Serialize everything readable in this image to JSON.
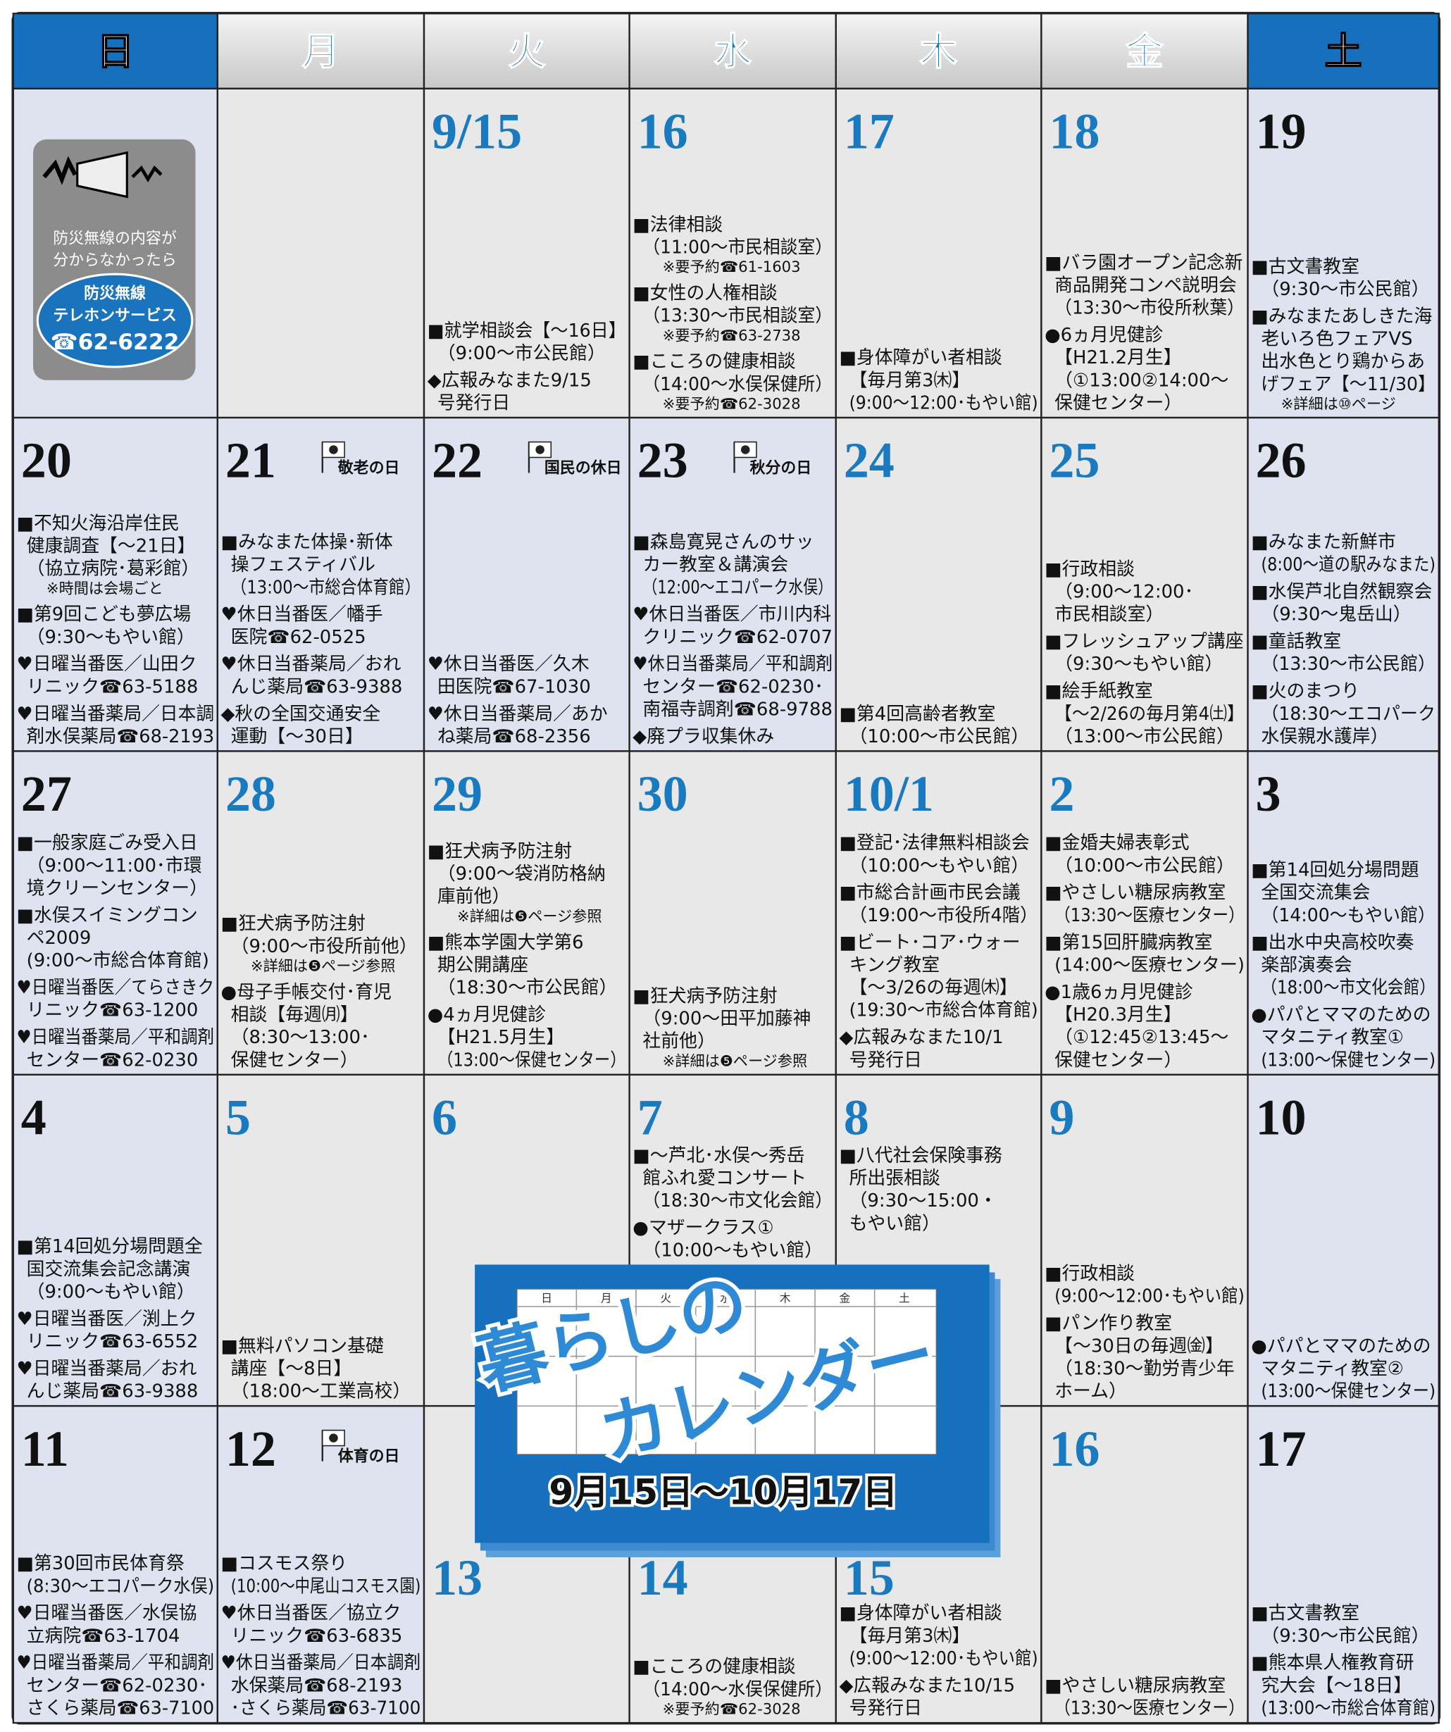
{
  "header": {
    "days": [
      "日",
      "月",
      "火",
      "水",
      "木",
      "金",
      "土"
    ]
  },
  "notice": {
    "lines": [
      "防災無線の内容が",
      "分からなかったら"
    ],
    "badge": [
      "防災無線",
      "テレホンサービス",
      "☎62-6222"
    ]
  },
  "banner": {
    "mini_days": [
      "日",
      "月",
      "火",
      "水",
      "木",
      "金",
      "土"
    ],
    "title1": "暮らしの",
    "title2": "カレンダー",
    "period": "9月15日〜10月17日"
  },
  "weeks": [
    {
      "days": [
        {
          "events": []
        },
        {
          "events": []
        },
        {
          "date": "9/15",
          "events": [
            [
              "■就学相談会【〜16日】",
              "（9:00〜市公民館）"
            ],
            [
              "◆広報みなまた9/15",
              "号発行日"
            ]
          ]
        },
        {
          "date": "16",
          "events": [
            [
              "■法律相談",
              "（11:00〜市民相談室）",
              "※要予約☎61-1603"
            ],
            [
              "■女性の人権相談",
              "（13:30〜市民相談室）",
              "※要予約☎63-2738"
            ],
            [
              "■こころの健康相談",
              "（14:00〜水俣保健所）",
              "※要予約☎62-3028"
            ]
          ]
        },
        {
          "date": "17",
          "events": [
            [
              "■身体障がい者相談",
              "【毎月第3㈭】",
              "(9:00〜12:00･もやい館)"
            ]
          ]
        },
        {
          "date": "18",
          "events": [
            [
              "■バラ園オープン記念新",
              "商品開発コンペ説明会",
              "（13:30〜市役所秋葉）"
            ],
            [
              "●6ヵ月児健診",
              "【H21.2月生】",
              "（①13:00②14:00〜",
              "保健センター）"
            ]
          ]
        },
        {
          "date": "19",
          "events": [
            [
              "■古文書教室",
              "（9:30〜市公民館）"
            ],
            [
              "■みなまたあしきた海",
              "老いろ色フェアVS",
              "出水色とり鶏からあ",
              "げフェア【〜11/30】",
              "※詳細は⑩ページ"
            ]
          ]
        }
      ]
    },
    {
      "days": [
        {
          "date": "20",
          "events": [
            [
              "■不知火海沿岸住民",
              "健康調査【〜21日】",
              "（協立病院･葛彩館）",
              "※時間は会場ごと"
            ],
            [
              "■第9回こども夢広場",
              "（9:30〜もやい館）"
            ],
            [
              "♥日曜当番医／山田ク",
              "リニック☎63-5188"
            ],
            [
              "♥日曜当番薬局／日本調",
              "剤水俣薬局☎68-2193"
            ]
          ]
        },
        {
          "date": "21",
          "holiday": "敬老の日",
          "events": [
            [
              "■みなまた体操･新体",
              "操フェスティバル",
              "（13:00〜市総合体育館）"
            ],
            [
              "♥休日当番医／幡手",
              "医院☎62-0525"
            ],
            [
              "♥休日当番薬局／おれ",
              "んじ薬局☎63-9388"
            ],
            [
              "◆秋の全国交通安全",
              "運動【〜30日】"
            ]
          ]
        },
        {
          "date": "22",
          "holiday": "国民の休日",
          "events": [
            [
              "♥休日当番医／久木",
              "田医院☎67-1030"
            ],
            [
              "♥休日当番薬局／あか",
              "ね薬局☎68-2356"
            ]
          ]
        },
        {
          "date": "23",
          "holiday": "秋分の日",
          "events": [
            [
              "■森島寛晃さんのサッ",
              "カー教室＆講演会",
              "（12:00〜エコパーク水俣）"
            ],
            [
              "♥休日当番医／市川内科",
              "クリニック☎62-0707"
            ],
            [
              "♥休日当番薬局／平和調剤",
              "センター☎62-0230･",
              "南福寺調剤☎68-9788"
            ],
            [
              "◆廃プラ収集休み"
            ]
          ]
        },
        {
          "date": "24",
          "events": [
            [
              "■第4回高齢者教室",
              "（10:00〜市公民館）"
            ]
          ]
        },
        {
          "date": "25",
          "events": [
            [
              "■行政相談",
              "（9:00〜12:00･",
              "市民相談室）"
            ],
            [
              "■フレッシュアップ講座",
              "（9:30〜もやい館）"
            ],
            [
              "■絵手紙教室",
              "【〜2/26の毎月第4㈯】",
              "（13:00〜市公民館）"
            ]
          ]
        },
        {
          "date": "26",
          "events": [
            [
              "■みなまた新鮮市",
              "(8:00〜道の駅みなまた)"
            ],
            [
              "■水俣芦北自然観察会",
              "（9:30〜鬼岳山）"
            ],
            [
              "■童話教室",
              "（13:30〜市公民館）"
            ],
            [
              "■火のまつり",
              "（18:30〜エコパーク",
              "水俣親水護岸）"
            ]
          ]
        }
      ]
    },
    {
      "days": [
        {
          "date": "27",
          "events": [
            [
              "■一般家庭ごみ受入日",
              "（9:00〜11:00･市環",
              "境クリーンセンター）"
            ],
            [
              "■水俣スイミングコン",
              "ペ2009",
              "(9:00〜市総合体育館)"
            ],
            [
              "♥日曜当番医／てらさきク",
              "リニック☎63-1200"
            ],
            [
              "♥日曜当番薬局／平和調剤",
              "センター☎62-0230"
            ]
          ]
        },
        {
          "date": "28",
          "events": [
            [
              "■狂犬病予防注射",
              "（9:00〜市役所前他）",
              "※詳細は❺ページ参照"
            ],
            [
              "●母子手帳交付･育児",
              "相談【毎週㈪】",
              "（8:30〜13:00･",
              "保健センター）"
            ]
          ]
        },
        {
          "date": "29",
          "events": [
            [
              "■狂犬病予防注射",
              "（9:00〜袋消防格納",
              "庫前他）",
              "※詳細は❺ページ参照"
            ],
            [
              "■熊本学園大学第6",
              "期公開講座",
              "（18:30〜市公民館）"
            ],
            [
              "●4ヵ月児健診",
              "【H21.5月生】",
              "（13:00〜保健センター）"
            ]
          ]
        },
        {
          "date": "30",
          "events": [
            [
              "■狂犬病予防注射",
              "（9:00〜田平加藤神",
              "社前他）",
              "※詳細は❺ページ参照"
            ]
          ]
        },
        {
          "date": "10/1",
          "events": [
            [
              "■登記･法律無料相談会",
              "（10:00〜もやい館）"
            ],
            [
              "■市総合計画市民会議",
              "（19:00〜市役所4階）"
            ],
            [
              "■ビート･コア･ウォー",
              "キング教室",
              "【〜3/26の毎週㈭】",
              "(19:30〜市総合体育館)"
            ],
            [
              "◆広報みなまた10/1",
              "号発行日"
            ]
          ]
        },
        {
          "date": "2",
          "events": [
            [
              "■金婚夫婦表彰式",
              "（10:00〜市公民館）"
            ],
            [
              "■やさしい糖尿病教室",
              "（13:30〜医療センター）"
            ],
            [
              "■第15回肝臓病教室",
              "(14:00〜医療センター)"
            ],
            [
              "●1歳6ヵ月児健診",
              "【H20.3月生】",
              "（①12:45②13:45〜",
              "保健センター）"
            ]
          ]
        },
        {
          "date": "3",
          "events": [
            [
              "■第14回処分場問題",
              "全国交流集会",
              "（14:00〜もやい館）"
            ],
            [
              "■出水中央高校吹奏",
              "楽部演奏会",
              "（18:00〜市文化会館）"
            ],
            [
              "●パパとママのための",
              "マタニティ教室①",
              "(13:00〜保健センター)"
            ]
          ]
        }
      ]
    },
    {
      "days": [
        {
          "date": "4",
          "events": [
            [
              "■第14回処分場問題全",
              "国交流集会記念講演",
              "（9:00〜もやい館）"
            ],
            [
              "♥日曜当番医／渕上ク",
              "リニック☎63-6552"
            ],
            [
              "♥日曜当番薬局／おれ",
              "んじ薬局☎63-9388"
            ]
          ]
        },
        {
          "date": "5",
          "events": [
            [
              "■無料パソコン基礎",
              "講座【〜8日】",
              "（18:00〜工業高校）"
            ]
          ]
        },
        {
          "date": "6",
          "events": []
        },
        {
          "date": "7",
          "events": [
            [
              "■〜芦北･水俣〜秀岳",
              "館ふれ愛コンサート",
              "（18:30〜市文化会館）"
            ],
            [
              "●マザークラス①",
              "（10:00〜もやい館）"
            ]
          ]
        },
        {
          "date": "8",
          "events": [
            [
              "■八代社会保険事務",
              "所出張相談",
              "（9:30〜15:00・",
              "もやい館）"
            ]
          ]
        },
        {
          "date": "9",
          "events": [
            [
              "■行政相談",
              "(9:00〜12:00･もやい館)"
            ],
            [
              "■パン作り教室",
              "【〜30日の毎週㈮】",
              "（18:30〜勤労青少年",
              "ホーム）"
            ]
          ]
        },
        {
          "date": "10",
          "events": [
            [
              "●パパとママのための",
              "マタニティ教室②",
              "(13:00〜保健センター)"
            ]
          ]
        }
      ]
    },
    {
      "days": [
        {
          "date": "11",
          "events": [
            [
              "■第30回市民体育祭",
              "(8:30〜エコパーク水俣)"
            ],
            [
              "♥日曜当番医／水俣協",
              "立病院☎63-1704"
            ],
            [
              "♥日曜当番薬局／平和調剤",
              "センター☎62-0230･",
              "さくら薬局☎63-7100"
            ]
          ]
        },
        {
          "date": "12",
          "holiday": "体育の日",
          "events": [
            [
              "■コスモス祭り",
              "(10:00〜中尾山コスモス園)"
            ],
            [
              "♥休日当番医／協立ク",
              "リニック☎63-6835"
            ],
            [
              "♥休日当番薬局／日本調剤",
              "水保薬局☎68-2193",
              "･さくら薬局☎63-7100"
            ]
          ]
        },
        {
          "date": "13",
          "events": []
        },
        {
          "date": "14",
          "events": [
            [
              "■こころの健康相談",
              "（14:00〜水俣保健所）",
              "※要予約☎62-3028"
            ]
          ]
        },
        {
          "date": "15",
          "events": [
            [
              "■身体障がい者相談",
              "【毎月第3㈭】",
              "(9:00〜12:00･もやい館)"
            ],
            [
              "◆広報みなまた10/15",
              "号発行日"
            ]
          ]
        },
        {
          "date": "16",
          "events": [
            [
              "■やさしい糖尿病教室",
              "（13:30〜医療センター）"
            ]
          ]
        },
        {
          "date": "17",
          "events": [
            [
              "■古文書教室",
              "（9:30〜市公民館）"
            ],
            [
              "■熊本県人権教育研",
              "究大会【〜18日】",
              "(13:00〜市総合体育館)"
            ]
          ]
        }
      ]
    }
  ]
}
